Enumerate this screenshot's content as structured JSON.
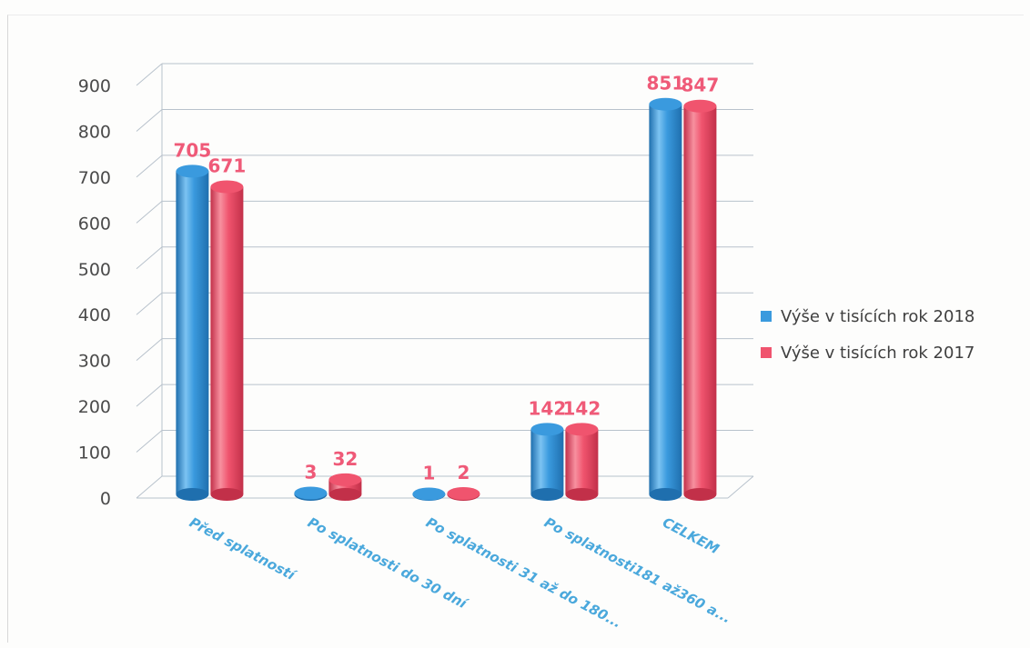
{
  "chart_data": {
    "type": "bar",
    "categories": [
      "Před splatností",
      "Po splatnosti  do 30 dní",
      "Po splatnosti 31 až do 180...",
      "Po splatnosti181 až360 a...",
      "CELKEM"
    ],
    "series": [
      {
        "name": "Výše v  tisících rok 2018",
        "values": [
          705,
          3,
          1,
          142,
          851
        ],
        "color": "#3a9ade",
        "color_dark": "#1f6fae",
        "color_light": "#7cc3f2"
      },
      {
        "name": "Výše v  tisících rok 2017",
        "values": [
          671,
          32,
          2,
          142,
          847
        ],
        "color": "#f0546e",
        "color_dark": "#c23049",
        "color_light": "#f7909f"
      }
    ],
    "data_labels": [
      [
        "705",
        "3",
        "1",
        "142",
        "851"
      ],
      [
        "671",
        "32",
        "2",
        "142",
        "847"
      ]
    ],
    "y_ticks": [
      0,
      100,
      200,
      300,
      400,
      500,
      600,
      700,
      800,
      900
    ],
    "ylim": [
      0,
      900
    ],
    "grid": true,
    "legend_position": "right",
    "label_color": "#ef5a78",
    "category_label_color": "#4aa8dc",
    "tick_label_color": "#4a4a4a"
  }
}
